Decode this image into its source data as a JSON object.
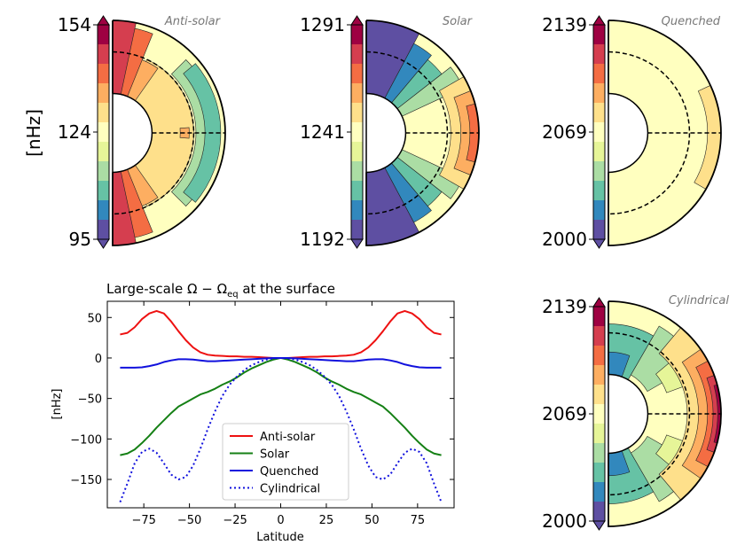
{
  "units_label": "[nHz]",
  "palette": [
    "#5e4fa2",
    "#3288bd",
    "#66c2a5",
    "#abdda4",
    "#e6f598",
    "#ffffbf",
    "#fee08b",
    "#fdae61",
    "#f46d43",
    "#d53e4f",
    "#9e0142"
  ],
  "meridional_panels": [
    {
      "title": "Anti-solar",
      "colorbar_ticks": [
        "154",
        "124",
        "95"
      ],
      "regions": [
        {
          "color": "#fee08b",
          "r_from": 0.28,
          "r_to": 0.72,
          "lat_from": -65,
          "lat_to": 65
        },
        {
          "color": "#fdae61",
          "r_from": 0.28,
          "r_to": 0.7,
          "lat_from": 55,
          "lat_to": 72
        },
        {
          "color": "#fdae61",
          "r_from": 0.28,
          "r_to": 0.7,
          "lat_from": -72,
          "lat_to": -55
        },
        {
          "color": "#f46d43",
          "r_from": 0.2,
          "r_to": 0.95,
          "lat_from": 68,
          "lat_to": 82
        },
        {
          "color": "#f46d43",
          "r_from": 0.2,
          "r_to": 0.95,
          "lat_from": -82,
          "lat_to": -68
        },
        {
          "color": "#d53e4f",
          "r_from": 0.0,
          "r_to": 1.0,
          "lat_from": 78,
          "lat_to": 90
        },
        {
          "color": "#d53e4f",
          "r_from": 0.0,
          "r_to": 1.0,
          "lat_from": -90,
          "lat_to": -78
        },
        {
          "color": "#abdda4",
          "r_from": 0.74,
          "r_to": 0.92,
          "lat_from": -45,
          "lat_to": 45
        },
        {
          "color": "#66c2a5",
          "r_from": 0.82,
          "r_to": 0.96,
          "lat_from": -40,
          "lat_to": 40
        },
        {
          "color": "#fdae61",
          "r_from": 0.6,
          "r_to": 0.68,
          "lat_from": -4,
          "lat_to": 4
        }
      ]
    },
    {
      "title": "Solar",
      "colorbar_ticks": [
        "1291",
        "1241",
        "1192"
      ],
      "regions": [
        {
          "color": "#5e4fa2",
          "r_from": 0.0,
          "r_to": 1.0,
          "lat_from": 62,
          "lat_to": 90
        },
        {
          "color": "#5e4fa2",
          "r_from": 0.0,
          "r_to": 1.0,
          "lat_from": -90,
          "lat_to": -62
        },
        {
          "color": "#3288bd",
          "r_from": 0.0,
          "r_to": 0.9,
          "lat_from": 50,
          "lat_to": 62
        },
        {
          "color": "#3288bd",
          "r_from": 0.0,
          "r_to": 0.9,
          "lat_from": -62,
          "lat_to": -50
        },
        {
          "color": "#66c2a5",
          "r_from": 0.1,
          "r_to": 0.85,
          "lat_from": 38,
          "lat_to": 50
        },
        {
          "color": "#66c2a5",
          "r_from": 0.1,
          "r_to": 0.85,
          "lat_from": -50,
          "lat_to": -38
        },
        {
          "color": "#abdda4",
          "r_from": 0.3,
          "r_to": 0.95,
          "lat_from": 25,
          "lat_to": 38
        },
        {
          "color": "#abdda4",
          "r_from": 0.3,
          "r_to": 0.95,
          "lat_from": -38,
          "lat_to": -25
        },
        {
          "color": "#fee08b",
          "r_from": 0.75,
          "r_to": 1.0,
          "lat_from": -30,
          "lat_to": 30
        },
        {
          "color": "#fdae61",
          "r_from": 0.84,
          "r_to": 1.0,
          "lat_from": -22,
          "lat_to": 22
        },
        {
          "color": "#f46d43",
          "r_from": 0.92,
          "r_to": 1.0,
          "lat_from": -15,
          "lat_to": 15
        }
      ]
    },
    {
      "title": "Quenched",
      "colorbar_ticks": [
        "2139",
        "2069",
        "2000"
      ],
      "regions": [
        {
          "color": "#fee08b",
          "r_from": 0.88,
          "r_to": 1.0,
          "lat_from": -30,
          "lat_to": 25
        }
      ]
    },
    {
      "title": "Cylindrical",
      "colorbar_ticks": [
        "2139",
        "2069",
        "2000"
      ],
      "regions": [
        {
          "color": "#66c2a5",
          "r_from": 0.0,
          "r_to": 0.8,
          "lat_from": 60,
          "lat_to": 90
        },
        {
          "color": "#66c2a5",
          "r_from": 0.0,
          "r_to": 0.8,
          "lat_from": -90,
          "lat_to": -60
        },
        {
          "color": "#3288bd",
          "r_from": 0.0,
          "r_to": 0.55,
          "lat_from": 70,
          "lat_to": 90
        },
        {
          "color": "#3288bd",
          "r_from": 0.0,
          "r_to": 0.55,
          "lat_from": -90,
          "lat_to": -70
        },
        {
          "color": "#abdda4",
          "r_from": 0.4,
          "r_to": 0.9,
          "lat_from": 30,
          "lat_to": 60
        },
        {
          "color": "#abdda4",
          "r_from": 0.4,
          "r_to": 0.9,
          "lat_from": -60,
          "lat_to": -30
        },
        {
          "color": "#e6f598",
          "r_from": 0.55,
          "r_to": 0.9,
          "lat_from": 20,
          "lat_to": 40
        },
        {
          "color": "#e6f598",
          "r_from": 0.55,
          "r_to": 0.9,
          "lat_from": -40,
          "lat_to": -20
        },
        {
          "color": "#fee08b",
          "r_from": 0.7,
          "r_to": 1.0,
          "lat_from": -50,
          "lat_to": 50
        },
        {
          "color": "#fdae61",
          "r_from": 0.8,
          "r_to": 1.0,
          "lat_from": -35,
          "lat_to": 35
        },
        {
          "color": "#f46d43",
          "r_from": 0.88,
          "r_to": 1.0,
          "lat_from": -28,
          "lat_to": 28
        },
        {
          "color": "#d53e4f",
          "r_from": 0.93,
          "r_to": 1.0,
          "lat_from": -20,
          "lat_to": 20
        },
        {
          "color": "#9e0142",
          "r_from": 0.97,
          "r_to": 1.0,
          "lat_from": -15,
          "lat_to": 15
        }
      ]
    }
  ],
  "chart_data": {
    "type": "line",
    "title": "Large-scale Ω − Ωeq at the surface",
    "title_parts": {
      "main": "Large-scale Ω − Ω",
      "sub": "eq",
      "tail": " at the surface"
    },
    "xlabel": "Latitude",
    "ylabel": "[nHz]",
    "xlim": [
      -95,
      95
    ],
    "ylim": [
      -185,
      70
    ],
    "xticks": [
      -75,
      -50,
      -25,
      0,
      25,
      50,
      75
    ],
    "yticks": [
      50,
      0,
      -50,
      -100,
      -150
    ],
    "legend_position": "lower-center",
    "x": [
      -88,
      -84,
      -80,
      -76,
      -72,
      -68,
      -64,
      -60,
      -56,
      -52,
      -48,
      -44,
      -40,
      -36,
      -32,
      -28,
      -24,
      -20,
      -16,
      -12,
      -8,
      -4,
      0,
      4,
      8,
      12,
      16,
      20,
      24,
      28,
      32,
      36,
      40,
      44,
      48,
      52,
      56,
      60,
      64,
      68,
      72,
      76,
      80,
      84,
      88
    ],
    "series": [
      {
        "name": "Anti-solar",
        "color": "#ee1111",
        "dash": "",
        "values": [
          29,
          31,
          38,
          48,
          55,
          58,
          55,
          45,
          33,
          22,
          13,
          7,
          4,
          3,
          2.5,
          2,
          2,
          1.5,
          1.5,
          1,
          0.5,
          0,
          0,
          0,
          0.5,
          1,
          1.5,
          1.5,
          2,
          2,
          2.5,
          3,
          4,
          7,
          13,
          22,
          33,
          45,
          55,
          58,
          55,
          48,
          38,
          31,
          29
        ]
      },
      {
        "name": "Solar",
        "color": "#158015",
        "dash": "",
        "values": [
          -120,
          -118,
          -113,
          -105,
          -96,
          -86,
          -77,
          -68,
          -60,
          -55,
          -50,
          -45,
          -42,
          -38,
          -33,
          -29,
          -24,
          -18,
          -13,
          -9,
          -5,
          -2,
          0,
          -2,
          -5,
          -9,
          -13,
          -18,
          -24,
          -29,
          -33,
          -38,
          -42,
          -45,
          -50,
          -55,
          -60,
          -68,
          -77,
          -86,
          -96,
          -105,
          -113,
          -118,
          -120
        ]
      },
      {
        "name": "Quenched",
        "color": "#1111dd",
        "dash": "",
        "values": [
          -12,
          -12,
          -12,
          -11.5,
          -10,
          -8,
          -5,
          -3,
          -1.5,
          -1.5,
          -2,
          -3,
          -4,
          -4,
          -3.5,
          -3,
          -2.5,
          -2,
          -1.5,
          -1,
          -0.5,
          0,
          0,
          0,
          -0.5,
          -1,
          -1.5,
          -2,
          -2.5,
          -3,
          -3.5,
          -4,
          -4,
          -3,
          -2,
          -1.5,
          -1.5,
          -3,
          -5,
          -8,
          -10,
          -11.5,
          -12,
          -12,
          -12
        ]
      },
      {
        "name": "Cylindrical",
        "color": "#1111dd",
        "dash": "2,3",
        "values": [
          -178,
          -155,
          -130,
          -116,
          -112,
          -117,
          -130,
          -144,
          -150,
          -147,
          -133,
          -112,
          -88,
          -66,
          -47,
          -33,
          -23,
          -15,
          -9,
          -5,
          -2,
          -0.5,
          0,
          -0.5,
          -2,
          -5,
          -9,
          -15,
          -23,
          -33,
          -47,
          -66,
          -88,
          -112,
          -133,
          -147,
          -150,
          -144,
          -130,
          -117,
          -112,
          -116,
          -130,
          -155,
          -178
        ]
      }
    ]
  }
}
